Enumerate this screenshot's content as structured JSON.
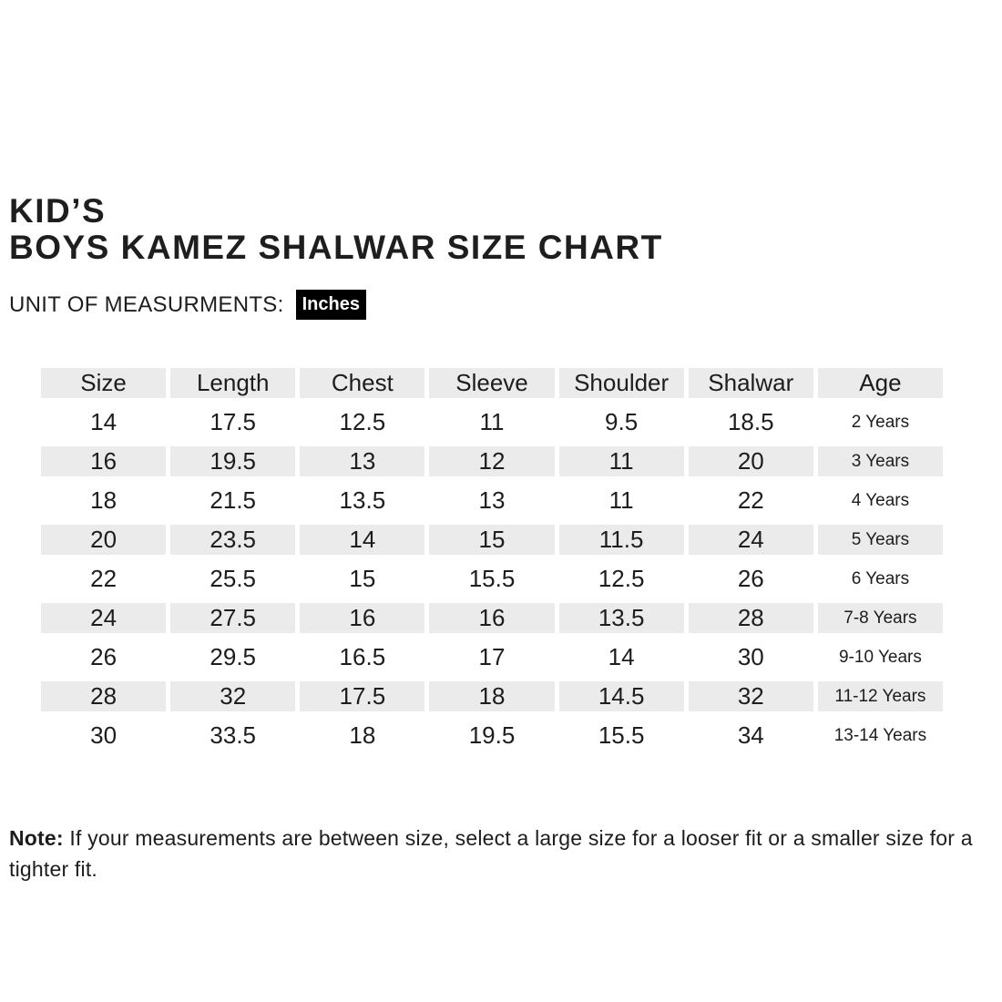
{
  "header": {
    "title_line1": "KID’S",
    "title_line2": "BOYS KAMEZ SHALWAR SIZE CHART",
    "unit_label": "UNIT OF MEASURMENTS:",
    "unit_value": "Inches"
  },
  "chart_data": {
    "type": "table",
    "title": "KID’S BOYS KAMEZ SHALWAR SIZE CHART",
    "unit_of_measurement": "Inches",
    "columns": [
      "Size",
      "Length",
      "Chest",
      "Sleeve",
      "Shoulder",
      "Shalwar",
      "Age"
    ],
    "rows": [
      [
        "14",
        "17.5",
        "12.5",
        "11",
        "9.5",
        "18.5",
        "2 Years"
      ],
      [
        "16",
        "19.5",
        "13",
        "12",
        "11",
        "20",
        "3 Years"
      ],
      [
        "18",
        "21.5",
        "13.5",
        "13",
        "11",
        "22",
        "4 Years"
      ],
      [
        "20",
        "23.5",
        "14",
        "15",
        "11.5",
        "24",
        "5 Years"
      ],
      [
        "22",
        "25.5",
        "15",
        "15.5",
        "12.5",
        "26",
        "6 Years"
      ],
      [
        "24",
        "27.5",
        "16",
        "16",
        "13.5",
        "28",
        "7-8 Years"
      ],
      [
        "26",
        "29.5",
        "16.5",
        "17",
        "14",
        "30",
        "9-10 Years"
      ],
      [
        "28",
        "32",
        "17.5",
        "18",
        "14.5",
        "32",
        "11-12 Years"
      ],
      [
        "30",
        "33.5",
        "18",
        "19.5",
        "15.5",
        "34",
        "13-14 Years"
      ]
    ],
    "layout_hints": {
      "header_background": "#ebebeb",
      "striped_row_background": "#ebebeb",
      "striped_row_indices": [
        1,
        3,
        5,
        7
      ]
    }
  },
  "note": {
    "label": "Note:",
    "text": " If your measurements are between size, select a large size for a looser fit or a smaller size for a tighter fit."
  },
  "colors": {
    "band": "#ebebeb",
    "text": "#1d1d1d",
    "unit_badge_bg": "#000000",
    "unit_badge_text": "#ffffff"
  }
}
